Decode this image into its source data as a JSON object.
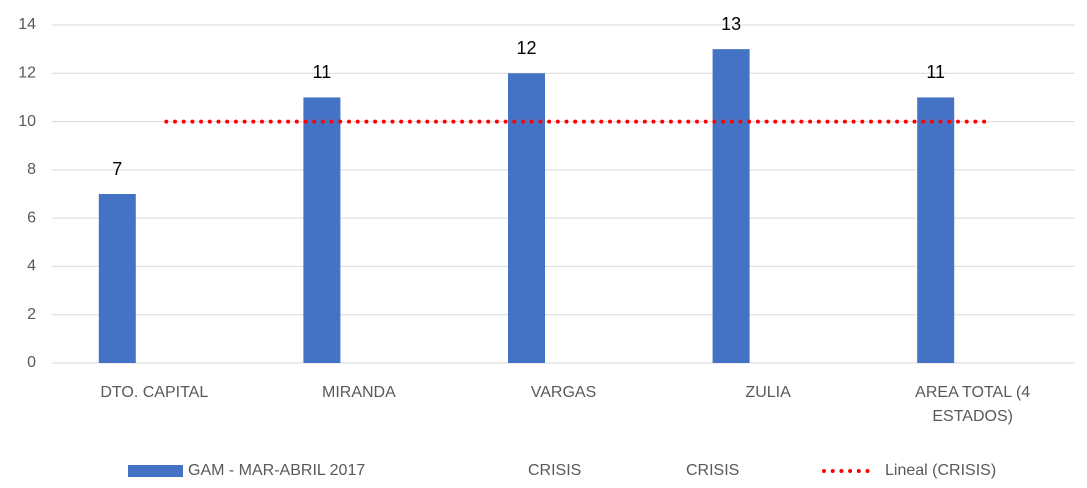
{
  "chart_data": {
    "type": "bar",
    "categories": [
      "DTO. CAPITAL",
      "MIRANDA",
      "VARGAS",
      "ZULIA",
      "AREA TOTAL (4 ESTADOS)"
    ],
    "series": [
      {
        "name": "GAM - MAR-ABRIL 2017",
        "type": "bar",
        "color": "#4472c4",
        "values": [
          7,
          11,
          12,
          13,
          11
        ]
      },
      {
        "name": "CRISIS",
        "type": "bar",
        "values": [
          null,
          null,
          null,
          null,
          null
        ]
      },
      {
        "name": "CRISIS",
        "type": "bar",
        "values": [
          null,
          null,
          null,
          null,
          null
        ]
      },
      {
        "name": "Lineal (CRISIS)",
        "type": "line",
        "style": "dotted",
        "color": "#ff0000",
        "values": [
          10,
          10,
          10,
          10,
          10
        ]
      }
    ],
    "ylim": [
      0,
      14
    ],
    "yticks": [
      0,
      2,
      4,
      6,
      8,
      10,
      12,
      14
    ],
    "grid": true,
    "legend": "bottom"
  }
}
